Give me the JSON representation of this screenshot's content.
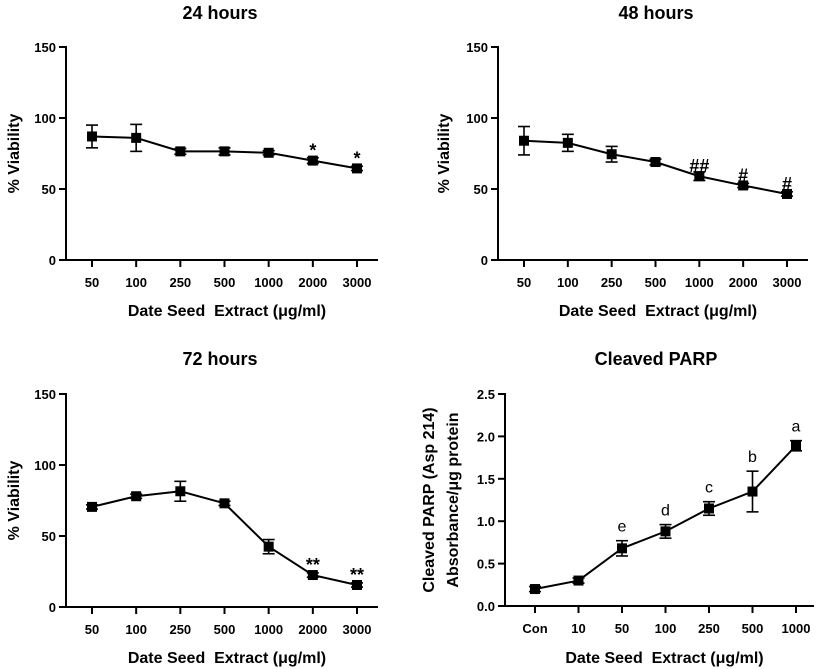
{
  "chart_data": [
    {
      "type": "line",
      "title": "24 hours",
      "xlabel": "Date Seed  Extract (μg/ml)",
      "ylabel": "% Viability",
      "categories": [
        "50",
        "100",
        "250",
        "500",
        "1000",
        "2000",
        "3000"
      ],
      "values": [
        87,
        86,
        76.5,
        76.5,
        75.5,
        70,
        64.5
      ],
      "errors": [
        8,
        9.5,
        2,
        2.5,
        1.5,
        2,
        1.5
      ],
      "annotations": [
        "",
        "",
        "",
        "",
        "",
        "*",
        "*"
      ],
      "ylim": [
        0,
        150
      ],
      "yticks": [
        0,
        50,
        100,
        150
      ],
      "grid": false
    },
    {
      "type": "line",
      "title": "48 hours",
      "xlabel": "Date Seed  Extract (μg/ml)",
      "ylabel": "% Viability",
      "categories": [
        "50",
        "100",
        "250",
        "500",
        "1000",
        "2000",
        "3000"
      ],
      "values": [
        84,
        82.5,
        74.5,
        69,
        59,
        52.5,
        46.5
      ],
      "errors": [
        10,
        6,
        5.5,
        2,
        3,
        1.5,
        1.5
      ],
      "annotations": [
        "",
        "",
        "",
        "",
        "##",
        "#",
        "#"
      ],
      "ylim": [
        0,
        150
      ],
      "yticks": [
        0,
        50,
        100,
        150
      ],
      "grid": false
    },
    {
      "type": "line",
      "title": "72 hours",
      "xlabel": "Date Seed  Extract (μg/ml)",
      "ylabel": "% Viability",
      "categories": [
        "50",
        "100",
        "250",
        "500",
        "1000",
        "2000",
        "3000"
      ],
      "values": [
        70.5,
        78,
        81.5,
        73,
        42.5,
        22.5,
        15.5
      ],
      "errors": [
        1.5,
        1.5,
        7,
        1.5,
        5,
        1.5,
        1.5
      ],
      "annotations": [
        "",
        "",
        "",
        "",
        "",
        "**",
        "**"
      ],
      "ylim": [
        0,
        150
      ],
      "yticks": [
        0,
        50,
        100,
        150
      ],
      "grid": false
    },
    {
      "type": "line",
      "title": "Cleaved PARP",
      "xlabel": "Date Seed  Extract (μg/ml)",
      "ylabel": "Cleaved PARP (Asp 214)",
      "ylabel2": "Absorbance/μg protein",
      "categories": [
        "Con",
        "10",
        "50",
        "100",
        "250",
        "500",
        "1000"
      ],
      "values": [
        0.2,
        0.3,
        0.68,
        0.88,
        1.15,
        1.35,
        1.89
      ],
      "errors": [
        0.03,
        0.03,
        0.09,
        0.08,
        0.08,
        0.24,
        0.06
      ],
      "annotations": [
        "",
        "",
        "e",
        "d",
        "c",
        "b",
        "a"
      ],
      "ylim": [
        0,
        2.5
      ],
      "yticks": [
        0,
        0.5,
        1.0,
        1.5,
        2.0,
        2.5
      ],
      "ytick_labels": [
        "0.0",
        "0.5",
        "1.0",
        "1.5",
        "2.0",
        "2.5"
      ],
      "grid": false
    }
  ]
}
